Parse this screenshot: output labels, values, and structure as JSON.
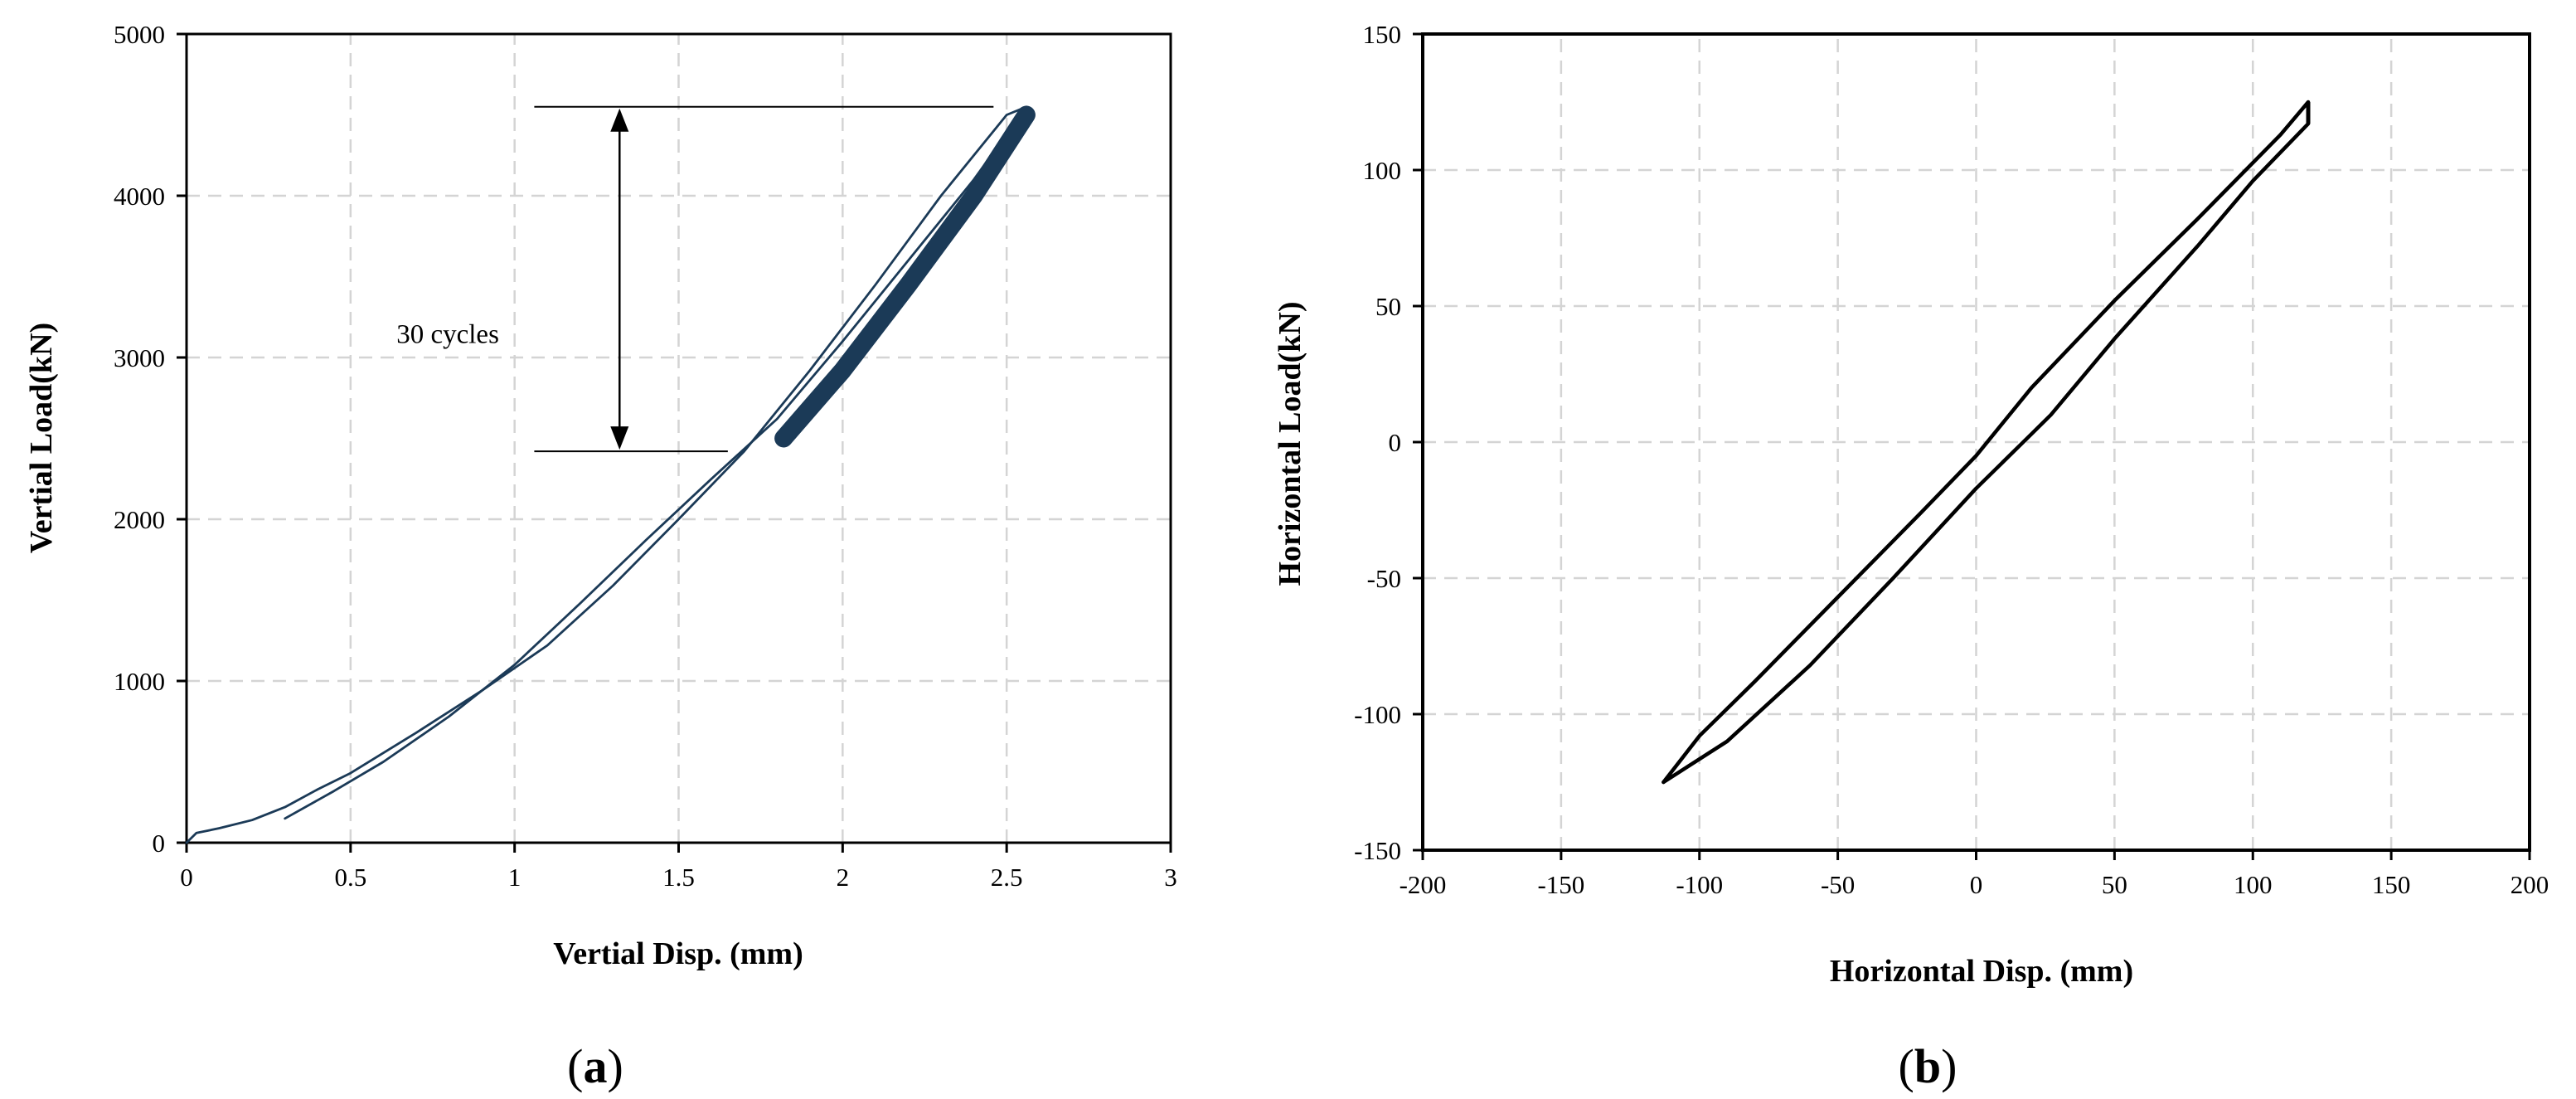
{
  "chart_data": [
    {
      "panel_label": "a",
      "type": "line",
      "xlabel": "Vertial Disp.  (mm)",
      "ylabel": "Vertial  Load(kN)",
      "xlim": [
        0,
        3
      ],
      "ylim": [
        0,
        5000
      ],
      "xticks": [
        0,
        0.5,
        1,
        1.5,
        2,
        2.5,
        3
      ],
      "yticks": [
        0,
        1000,
        2000,
        3000,
        4000,
        5000
      ],
      "grid": true,
      "annotation": {
        "text": "30 cycles",
        "from_load": 2420,
        "to_load": 4550
      },
      "series": [
        {
          "role": "loading",
          "x": [
            0,
            0.03,
            0.1,
            0.2,
            0.3,
            0.4,
            0.5,
            0.7,
            0.9,
            1.1,
            1.3,
            1.5,
            1.7,
            1.9,
            2.1,
            2.3,
            2.5,
            2.56
          ],
          "y": [
            0,
            60,
            90,
            140,
            220,
            330,
            430,
            680,
            940,
            1220,
            1590,
            2000,
            2420,
            2920,
            3450,
            4000,
            4500,
            4550
          ]
        },
        {
          "role": "unloading",
          "x": [
            2.56,
            2.4,
            2.2,
            2.0,
            1.8,
            1.6,
            1.4,
            1.2,
            1.0,
            0.8,
            0.6,
            0.45,
            0.3
          ],
          "y": [
            4550,
            4100,
            3600,
            3100,
            2620,
            2250,
            1870,
            1480,
            1100,
            780,
            500,
            320,
            150
          ]
        },
        {
          "role": "cyclic-band",
          "x": [
            1.82,
            2.0,
            2.2,
            2.4,
            2.56
          ],
          "y": [
            2500,
            2920,
            3450,
            4000,
            4500
          ]
        }
      ]
    },
    {
      "panel_label": "b",
      "type": "line",
      "xlabel": "Horizontal Disp.  (mm)",
      "ylabel": "Horizontal  Load(kN)",
      "xlim": [
        -200,
        200
      ],
      "ylim": [
        -150,
        150
      ],
      "xticks": [
        -200,
        -150,
        -100,
        -50,
        0,
        50,
        100,
        150,
        200
      ],
      "yticks": [
        -150,
        -100,
        -50,
        0,
        50,
        100,
        150
      ],
      "grid": true,
      "series": [
        {
          "role": "hysteresis-upper",
          "x": [
            -113,
            -100,
            -80,
            -50,
            -20,
            0,
            20,
            50,
            80,
            110,
            120
          ],
          "y": [
            -125,
            -108,
            -88,
            -57,
            -26,
            -5,
            20,
            52,
            82,
            113,
            125
          ]
        },
        {
          "role": "hysteresis-lower",
          "x": [
            120,
            100,
            80,
            50,
            27,
            20,
            0,
            -30,
            -60,
            -90,
            -113
          ],
          "y": [
            117,
            96,
            72,
            38,
            10,
            3,
            -17,
            -50,
            -82,
            -110,
            -125
          ]
        }
      ]
    }
  ]
}
